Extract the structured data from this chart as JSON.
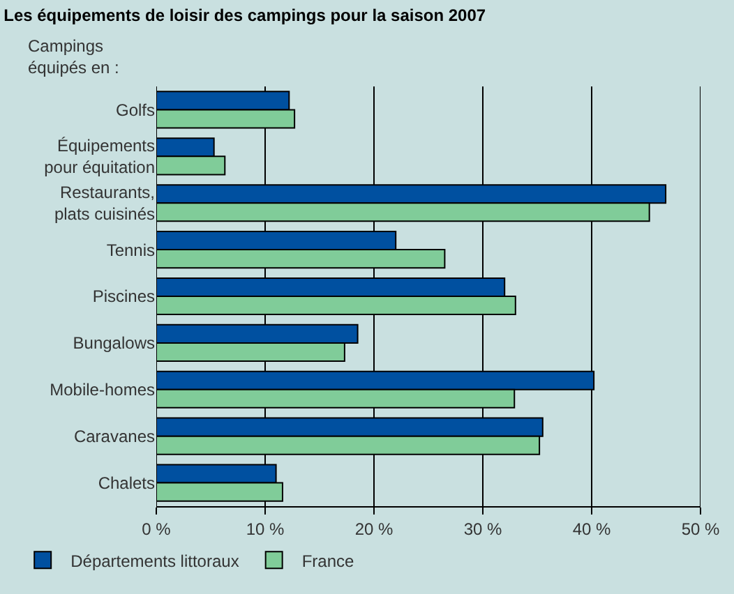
{
  "chart_data": {
    "type": "bar",
    "orientation": "horizontal",
    "title": "Les équipements de loisir des campings pour la saison 2007",
    "ylabel": "Campings\néquipés en :",
    "categories": [
      "Golfs",
      "Équipements\npour équitation",
      "Restaurants,\nplats cuisinés",
      "Tennis",
      "Piscines",
      "Bungalows",
      "Mobile-homes",
      "Caravanes",
      "Chalets"
    ],
    "series": [
      {
        "name": "Départements littoraux",
        "color": "#0050a0",
        "values": [
          12.2,
          5.3,
          46.8,
          22.0,
          32.0,
          18.5,
          40.2,
          35.5,
          11.0
        ]
      },
      {
        "name": "France",
        "color": "#80cc99",
        "values": [
          12.7,
          6.3,
          45.3,
          26.5,
          33.0,
          17.3,
          32.9,
          35.2,
          11.6
        ]
      }
    ],
    "xlim": [
      0,
      50
    ],
    "xticks": [
      {
        "value": 0,
        "label": "0 %"
      },
      {
        "value": 10,
        "label": "10 %"
      },
      {
        "value": 20,
        "label": "20 %"
      },
      {
        "value": 30,
        "label": "30 %"
      },
      {
        "value": 40,
        "label": "40 %"
      },
      {
        "value": 50,
        "label": "50 %"
      }
    ],
    "grid": "x",
    "legend": "bottom left"
  }
}
